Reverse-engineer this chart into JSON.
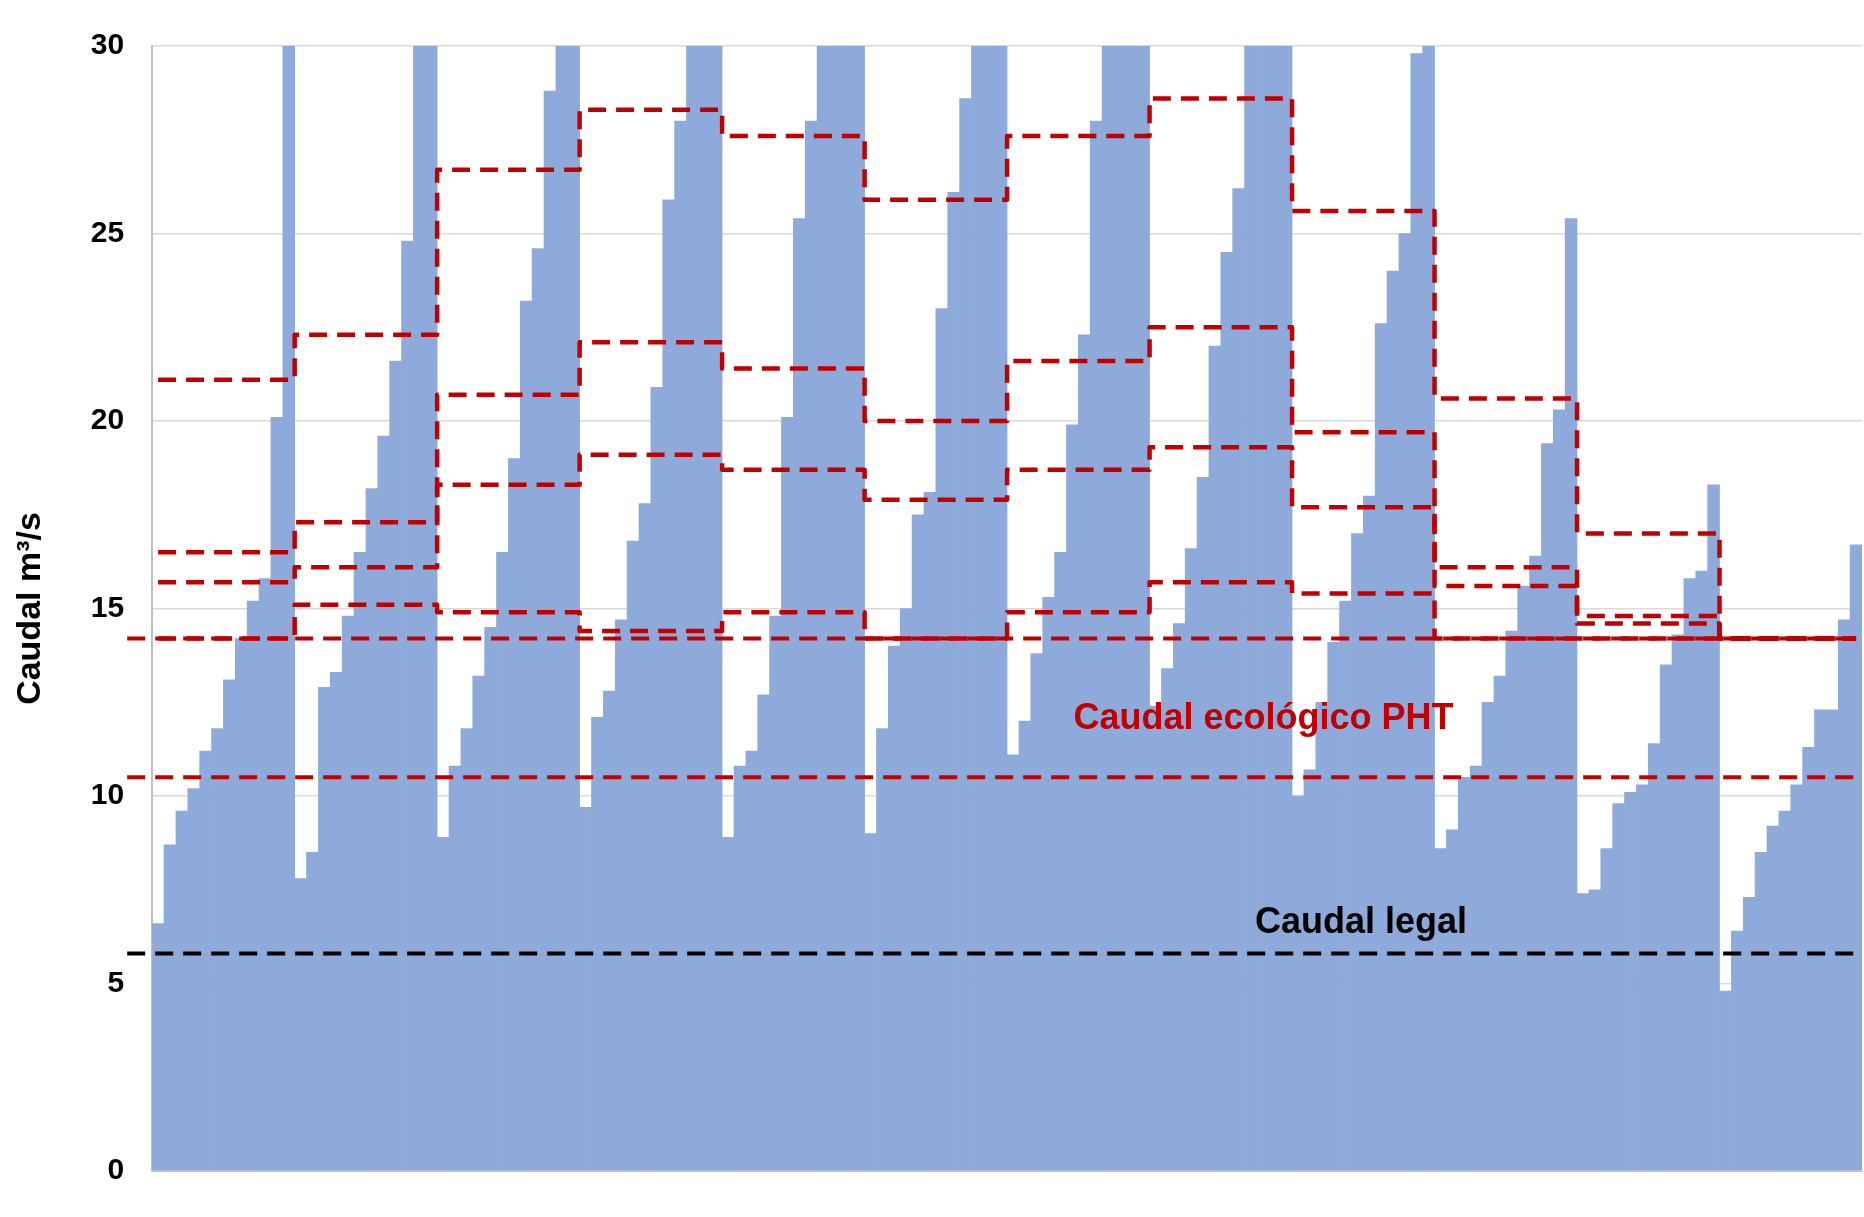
{
  "chart_data": {
    "type": "bar",
    "ylabel": "Caudal m³/s",
    "ylim": [
      0,
      30
    ],
    "yticks": [
      0,
      5,
      10,
      15,
      20,
      25,
      30
    ],
    "grid": "y",
    "legend": false,
    "line_style": "dashed",
    "categories": [
      null,
      null,
      null,
      null,
      null,
      null,
      null,
      null,
      null,
      null,
      null,
      null,
      null,
      null,
      null,
      null,
      null,
      null,
      null,
      null,
      null,
      null,
      null,
      null,
      null,
      null,
      null,
      null,
      null,
      null,
      null,
      null,
      null,
      null,
      null,
      null,
      null,
      null,
      null,
      null,
      null,
      null,
      null,
      null,
      null,
      null,
      null,
      null,
      null,
      null,
      null,
      null,
      null,
      null,
      null,
      null,
      null,
      null,
      null,
      null,
      null,
      null,
      null,
      null,
      null,
      null,
      null,
      null,
      null,
      null,
      null,
      null,
      null,
      null,
      null,
      null,
      null,
      null,
      null,
      null,
      null,
      null,
      null,
      null,
      null,
      null,
      null,
      null,
      null,
      null,
      null,
      null,
      null,
      null,
      null,
      null,
      null,
      null,
      null,
      null,
      null,
      null,
      null,
      null,
      null,
      null,
      null,
      null,
      null,
      null,
      null,
      null,
      null,
      null,
      null,
      null,
      null,
      null,
      null,
      null,
      null,
      null,
      null,
      null,
      null,
      null,
      null,
      null,
      null,
      null,
      null,
      null,
      null,
      null,
      null,
      null,
      null,
      null,
      null,
      null,
      null,
      null,
      null,
      null
    ],
    "series": [
      {
        "color": "#8eaadb",
        "values": [
          6.6,
          8.7,
          9.6,
          10.2,
          11.2,
          11.8,
          13.1,
          14.2,
          15.2,
          15.8,
          20.1,
          30,
          7.8,
          8.5,
          12.9,
          13.3,
          14.8,
          16.5,
          18.2,
          19.6,
          21.6,
          24.8,
          30,
          30,
          8.9,
          10.8,
          11.8,
          13.2,
          14.5,
          16.5,
          19,
          23.2,
          24.6,
          28.8,
          30,
          30,
          9.7,
          12.1,
          12.8,
          14.7,
          16.8,
          17.8,
          20.9,
          25.9,
          28,
          30,
          30,
          30,
          8.9,
          10.8,
          11.2,
          12.7,
          14.8,
          20.1,
          25.4,
          28,
          30,
          30,
          30,
          30,
          9,
          11.8,
          14,
          15,
          17.5,
          18.1,
          23,
          26.1,
          28.6,
          30,
          30,
          30,
          11.1,
          12,
          13.8,
          15.3,
          16.5,
          19.9,
          22.3,
          28,
          30,
          30,
          30,
          30,
          12.4,
          13.4,
          14.6,
          16.6,
          18.5,
          22,
          24.5,
          26.2,
          30,
          30,
          30,
          30,
          10,
          10.7,
          12.5,
          14.1,
          15.2,
          17,
          18,
          22.6,
          24,
          25,
          29.8,
          30,
          8.6,
          9.1,
          10.5,
          10.8,
          12.5,
          13.2,
          14.4,
          15.6,
          16.4,
          19.4,
          20.3,
          25.4,
          7.4,
          7.5,
          8.6,
          9.8,
          10.1,
          10.3,
          11.4,
          13.5,
          14.3,
          15.8,
          16,
          18.3,
          4.8,
          6.4,
          7.3,
          8.5,
          9.2,
          9.6,
          10.3,
          11.3,
          12.3,
          12.3,
          14.7,
          16.7
        ]
      },
      {
        "type": "step",
        "color": "#c00000",
        "values": [
          21.1,
          21.1,
          21.1,
          21.1,
          21.1,
          21.1,
          21.1,
          21.1,
          21.1,
          21.1,
          21.1,
          21.1,
          22.3,
          22.3,
          22.3,
          22.3,
          22.3,
          22.3,
          22.3,
          22.3,
          22.3,
          22.3,
          22.3,
          22.3,
          26.7,
          26.7,
          26.7,
          26.7,
          26.7,
          26.7,
          26.7,
          26.7,
          26.7,
          26.7,
          26.7,
          26.7,
          28.3,
          28.3,
          28.3,
          28.3,
          28.3,
          28.3,
          28.3,
          28.3,
          28.3,
          28.3,
          28.3,
          28.3,
          27.6,
          27.6,
          27.6,
          27.6,
          27.6,
          27.6,
          27.6,
          27.6,
          27.6,
          27.6,
          27.6,
          27.6,
          25.9,
          25.9,
          25.9,
          25.9,
          25.9,
          25.9,
          25.9,
          25.9,
          25.9,
          25.9,
          25.9,
          25.9,
          27.6,
          27.6,
          27.6,
          27.6,
          27.6,
          27.6,
          27.6,
          27.6,
          27.6,
          27.6,
          27.6,
          27.6,
          28.6,
          28.6,
          28.6,
          28.6,
          28.6,
          28.6,
          28.6,
          28.6,
          28.6,
          28.6,
          28.6,
          28.6,
          25.6,
          25.6,
          25.6,
          25.6,
          25.6,
          25.6,
          25.6,
          25.6,
          25.6,
          25.6,
          25.6,
          25.6,
          20.6,
          20.6,
          20.6,
          20.6,
          20.6,
          20.6,
          20.6,
          20.6,
          20.6,
          20.6,
          20.6,
          20.6,
          17,
          17,
          17,
          17,
          17,
          17,
          17,
          17,
          17,
          17,
          17,
          17,
          14.2,
          14.2,
          14.2,
          14.2,
          14.2,
          14.2,
          14.2,
          14.2,
          14.2,
          14.2,
          14.2,
          14.2
        ]
      },
      {
        "type": "step",
        "color": "#c00000",
        "values": [
          16.5,
          16.5,
          16.5,
          16.5,
          16.5,
          16.5,
          16.5,
          16.5,
          16.5,
          16.5,
          16.5,
          16.5,
          17.3,
          17.3,
          17.3,
          17.3,
          17.3,
          17.3,
          17.3,
          17.3,
          17.3,
          17.3,
          17.3,
          17.3,
          20.7,
          20.7,
          20.7,
          20.7,
          20.7,
          20.7,
          20.7,
          20.7,
          20.7,
          20.7,
          20.7,
          20.7,
          22.1,
          22.1,
          22.1,
          22.1,
          22.1,
          22.1,
          22.1,
          22.1,
          22.1,
          22.1,
          22.1,
          22.1,
          21.4,
          21.4,
          21.4,
          21.4,
          21.4,
          21.4,
          21.4,
          21.4,
          21.4,
          21.4,
          21.4,
          21.4,
          20,
          20,
          20,
          20,
          20,
          20,
          20,
          20,
          20,
          20,
          20,
          20,
          21.6,
          21.6,
          21.6,
          21.6,
          21.6,
          21.6,
          21.6,
          21.6,
          21.6,
          21.6,
          21.6,
          21.6,
          22.5,
          22.5,
          22.5,
          22.5,
          22.5,
          22.5,
          22.5,
          22.5,
          22.5,
          22.5,
          22.5,
          22.5,
          19.7,
          19.7,
          19.7,
          19.7,
          19.7,
          19.7,
          19.7,
          19.7,
          19.7,
          19.7,
          19.7,
          19.7,
          16.1,
          16.1,
          16.1,
          16.1,
          16.1,
          16.1,
          16.1,
          16.1,
          16.1,
          16.1,
          16.1,
          16.1,
          14.8,
          14.8,
          14.8,
          14.8,
          14.8,
          14.8,
          14.8,
          14.8,
          14.8,
          14.8,
          14.8,
          14.8,
          14.2,
          14.2,
          14.2,
          14.2,
          14.2,
          14.2,
          14.2,
          14.2,
          14.2,
          14.2,
          14.2,
          14.2
        ]
      },
      {
        "type": "step",
        "color": "#c00000",
        "values": [
          15.7,
          15.7,
          15.7,
          15.7,
          15.7,
          15.7,
          15.7,
          15.7,
          15.7,
          15.7,
          15.7,
          15.7,
          16.1,
          16.1,
          16.1,
          16.1,
          16.1,
          16.1,
          16.1,
          16.1,
          16.1,
          16.1,
          16.1,
          16.1,
          18.3,
          18.3,
          18.3,
          18.3,
          18.3,
          18.3,
          18.3,
          18.3,
          18.3,
          18.3,
          18.3,
          18.3,
          19.1,
          19.1,
          19.1,
          19.1,
          19.1,
          19.1,
          19.1,
          19.1,
          19.1,
          19.1,
          19.1,
          19.1,
          18.7,
          18.7,
          18.7,
          18.7,
          18.7,
          18.7,
          18.7,
          18.7,
          18.7,
          18.7,
          18.7,
          18.7,
          17.9,
          17.9,
          17.9,
          17.9,
          17.9,
          17.9,
          17.9,
          17.9,
          17.9,
          17.9,
          17.9,
          17.9,
          18.7,
          18.7,
          18.7,
          18.7,
          18.7,
          18.7,
          18.7,
          18.7,
          18.7,
          18.7,
          18.7,
          18.7,
          19.3,
          19.3,
          19.3,
          19.3,
          19.3,
          19.3,
          19.3,
          19.3,
          19.3,
          19.3,
          19.3,
          19.3,
          17.7,
          17.7,
          17.7,
          17.7,
          17.7,
          17.7,
          17.7,
          17.7,
          17.7,
          17.7,
          17.7,
          17.7,
          15.6,
          15.6,
          15.6,
          15.6,
          15.6,
          15.6,
          15.6,
          15.6,
          15.6,
          15.6,
          15.6,
          15.6,
          14.6,
          14.6,
          14.6,
          14.6,
          14.6,
          14.6,
          14.6,
          14.6,
          14.6,
          14.6,
          14.6,
          14.6,
          14.2,
          14.2,
          14.2,
          14.2,
          14.2,
          14.2,
          14.2,
          14.2,
          14.2,
          14.2,
          14.2,
          14.2
        ]
      },
      {
        "type": "step",
        "color": "#c00000",
        "values": [
          14.2,
          14.2,
          14.2,
          14.2,
          14.2,
          14.2,
          14.2,
          14.2,
          14.2,
          14.2,
          14.2,
          14.2,
          15.1,
          15.1,
          15.1,
          15.1,
          15.1,
          15.1,
          15.1,
          15.1,
          15.1,
          15.1,
          15.1,
          15.1,
          14.9,
          14.9,
          14.9,
          14.9,
          14.9,
          14.9,
          14.9,
          14.9,
          14.9,
          14.9,
          14.9,
          14.9,
          14.4,
          14.4,
          14.4,
          14.4,
          14.4,
          14.4,
          14.4,
          14.4,
          14.4,
          14.4,
          14.4,
          14.4,
          14.9,
          14.9,
          14.9,
          14.9,
          14.9,
          14.9,
          14.9,
          14.9,
          14.9,
          14.9,
          14.9,
          14.9,
          14.2,
          14.2,
          14.2,
          14.2,
          14.2,
          14.2,
          14.2,
          14.2,
          14.2,
          14.2,
          14.2,
          14.2,
          14.9,
          14.9,
          14.9,
          14.9,
          14.9,
          14.9,
          14.9,
          14.9,
          14.9,
          14.9,
          14.9,
          14.9,
          15.7,
          15.7,
          15.7,
          15.7,
          15.7,
          15.7,
          15.7,
          15.7,
          15.7,
          15.7,
          15.7,
          15.7,
          15.4,
          15.4,
          15.4,
          15.4,
          15.4,
          15.4,
          15.4,
          15.4,
          15.4,
          15.4,
          15.4,
          15.4,
          14.2,
          14.2,
          14.2,
          14.2,
          14.2,
          14.2,
          14.2,
          14.2,
          14.2,
          14.2,
          14.2,
          14.2,
          14.2,
          14.2,
          14.2,
          14.2,
          14.2,
          14.2,
          14.2,
          14.2,
          14.2,
          14.2,
          14.2,
          14.2,
          14.2,
          14.2,
          14.2,
          14.2,
          14.2,
          14.2,
          14.2,
          14.2,
          14.2,
          14.2,
          14.2,
          14.2
        ]
      }
    ],
    "ref_lines": [
      {
        "axis": "y",
        "value": 14.2,
        "label": null,
        "color": "#c00000",
        "line_style": "dashed"
      },
      {
        "axis": "y",
        "value": 10.5,
        "label": "Caudal ecológico PHT",
        "color": "#c00000",
        "line_style": "dashed"
      },
      {
        "axis": "y",
        "value": 5.8,
        "label": "Caudal legal",
        "color": "#000000",
        "line_style": "dashed"
      }
    ]
  }
}
